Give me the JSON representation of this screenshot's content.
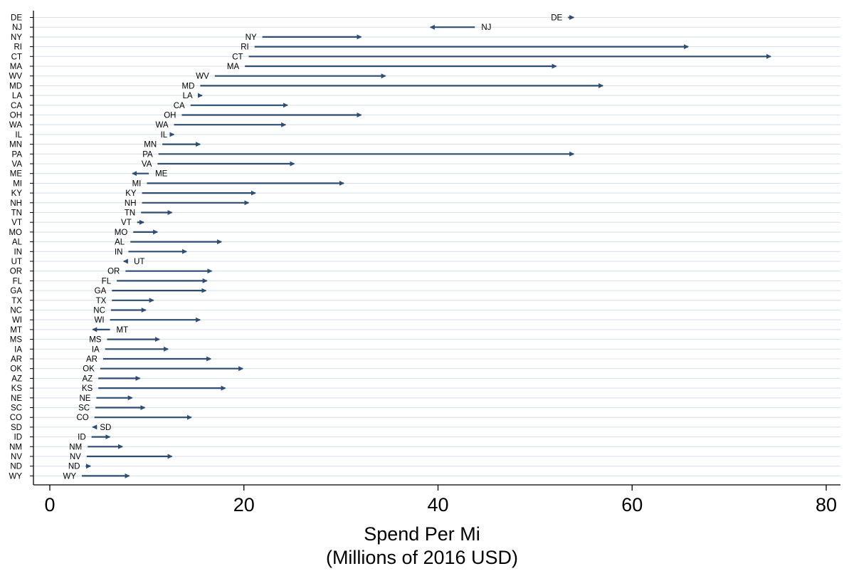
{
  "chart_data": {
    "type": "dot-arrow",
    "xlabel_line1": "Spend Per Mi",
    "xlabel_line2": "(Millions of 2016 USD)",
    "xlim": [
      0,
      80
    ],
    "xticks": [
      0,
      20,
      40,
      60,
      80
    ],
    "grid": "horizontal",
    "arrow_color": "#2d4e72",
    "grid_color": "#d8e2ea",
    "rows": [
      {
        "state": "DE",
        "start": 53.4,
        "end": 54.2
      },
      {
        "state": "NJ",
        "start": 43.8,
        "end": 39.0
      },
      {
        "state": "NY",
        "start": 21.9,
        "end": 32.3
      },
      {
        "state": "RI",
        "start": 21.1,
        "end": 66.0
      },
      {
        "state": "CT",
        "start": 20.5,
        "end": 74.5
      },
      {
        "state": "MA",
        "start": 20.1,
        "end": 52.4
      },
      {
        "state": "WV",
        "start": 17.0,
        "end": 34.8
      },
      {
        "state": "MD",
        "start": 15.5,
        "end": 57.2
      },
      {
        "state": "LA",
        "start": 15.3,
        "end": 15.9
      },
      {
        "state": "CA",
        "start": 14.5,
        "end": 24.7
      },
      {
        "state": "OH",
        "start": 13.6,
        "end": 32.3
      },
      {
        "state": "WA",
        "start": 12.8,
        "end": 24.5
      },
      {
        "state": "IL",
        "start": 12.7,
        "end": 13.0
      },
      {
        "state": "MN",
        "start": 11.6,
        "end": 15.7
      },
      {
        "state": "PA",
        "start": 11.2,
        "end": 54.2
      },
      {
        "state": "VA",
        "start": 11.1,
        "end": 25.4
      },
      {
        "state": "ME",
        "start": 10.2,
        "end": 8.3
      },
      {
        "state": "MI",
        "start": 10.0,
        "end": 30.5
      },
      {
        "state": "KY",
        "start": 9.5,
        "end": 21.4
      },
      {
        "state": "NH",
        "start": 9.5,
        "end": 20.7
      },
      {
        "state": "TN",
        "start": 9.4,
        "end": 12.8
      },
      {
        "state": "VT",
        "start": 9.0,
        "end": 9.9
      },
      {
        "state": "MO",
        "start": 8.6,
        "end": 11.3
      },
      {
        "state": "AL",
        "start": 8.3,
        "end": 17.9
      },
      {
        "state": "IN",
        "start": 8.1,
        "end": 14.3
      },
      {
        "state": "UT",
        "start": 8.0,
        "end": 7.4
      },
      {
        "state": "OR",
        "start": 7.8,
        "end": 16.9
      },
      {
        "state": "FL",
        "start": 6.9,
        "end": 16.4
      },
      {
        "state": "GA",
        "start": 6.4,
        "end": 16.3
      },
      {
        "state": "TX",
        "start": 6.4,
        "end": 10.9
      },
      {
        "state": "NC",
        "start": 6.3,
        "end": 10.1
      },
      {
        "state": "WI",
        "start": 6.2,
        "end": 15.7
      },
      {
        "state": "MT",
        "start": 6.2,
        "end": 4.2
      },
      {
        "state": "MS",
        "start": 5.9,
        "end": 11.5
      },
      {
        "state": "IA",
        "start": 5.7,
        "end": 12.4
      },
      {
        "state": "AR",
        "start": 5.5,
        "end": 16.8
      },
      {
        "state": "OK",
        "start": 5.2,
        "end": 20.1
      },
      {
        "state": "AZ",
        "start": 5.0,
        "end": 9.5
      },
      {
        "state": "KS",
        "start": 5.0,
        "end": 18.3
      },
      {
        "state": "NE",
        "start": 4.8,
        "end": 8.7
      },
      {
        "state": "SC",
        "start": 4.7,
        "end": 10.0
      },
      {
        "state": "CO",
        "start": 4.6,
        "end": 14.8
      },
      {
        "state": "SD",
        "start": 4.5,
        "end": 4.2
      },
      {
        "state": "ID",
        "start": 4.3,
        "end": 6.4
      },
      {
        "state": "NM",
        "start": 3.9,
        "end": 7.7
      },
      {
        "state": "NV",
        "start": 3.8,
        "end": 12.8
      },
      {
        "state": "ND",
        "start": 3.7,
        "end": 4.4
      },
      {
        "state": "WY",
        "start": 3.3,
        "end": 8.4
      }
    ]
  }
}
